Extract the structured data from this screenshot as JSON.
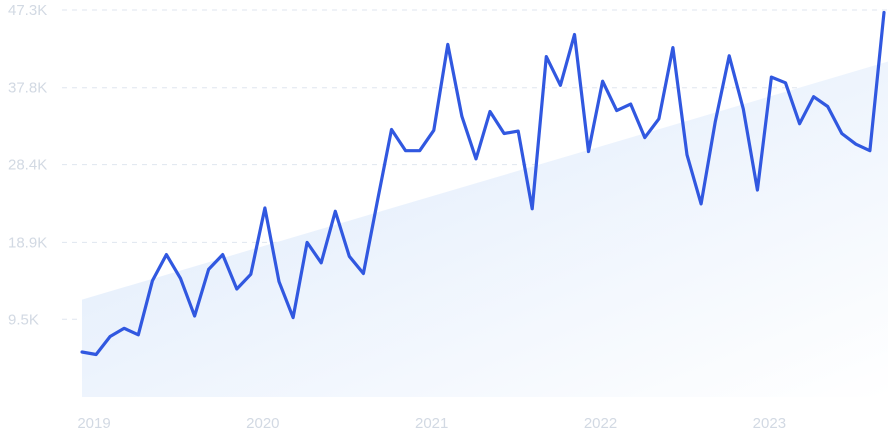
{
  "chart_data": {
    "type": "line",
    "title": "",
    "xlabel": "",
    "ylabel": "",
    "x_tick_labels": [
      "2019",
      "2020",
      "2021",
      "2022",
      "2023"
    ],
    "y_tick_labels": [
      "9.5K",
      "18.9K",
      "28.4K",
      "37.8K",
      "47.3K"
    ],
    "y_tick_values": [
      9500,
      18900,
      28400,
      37800,
      47300
    ],
    "ylim": [
      0,
      47300
    ],
    "xlim": [
      "2019-01",
      "2023-10"
    ],
    "grid": "horizontal dashed",
    "colors": {
      "line": "#3158e0",
      "trend_fill_start": "#dce9fb",
      "trend_fill_end": "#ffffff",
      "grid": "#dfe6ef",
      "tick_text": "#d2d9e3"
    },
    "trend": {
      "start": 11900,
      "end": 41000
    },
    "series": [
      {
        "x": [
          "2019-01",
          "2019-02",
          "2019-03",
          "2019-04",
          "2019-05",
          "2019-06",
          "2019-07",
          "2019-08",
          "2019-09",
          "2019-10",
          "2019-11",
          "2019-12",
          "2020-01",
          "2020-02",
          "2020-03",
          "2020-04",
          "2020-05",
          "2020-06",
          "2020-07",
          "2020-08",
          "2020-09",
          "2020-10",
          "2020-11",
          "2020-12",
          "2021-01",
          "2021-02",
          "2021-03",
          "2021-04",
          "2021-05",
          "2021-06",
          "2021-07",
          "2021-08",
          "2021-09",
          "2021-10",
          "2021-11",
          "2021-12",
          "2022-01",
          "2022-02",
          "2022-03",
          "2022-04",
          "2022-05",
          "2022-06",
          "2022-07",
          "2022-08",
          "2022-09",
          "2022-10",
          "2022-11",
          "2022-12",
          "2023-01",
          "2023-02",
          "2023-03",
          "2023-04",
          "2023-05",
          "2023-06",
          "2023-07",
          "2023-08",
          "2023-09",
          "2023-10"
        ],
        "values": [
          5500,
          5200,
          7400,
          8400,
          7600,
          14200,
          17400,
          14500,
          9900,
          15600,
          17400,
          13200,
          15000,
          23100,
          14100,
          9700,
          18900,
          16400,
          22700,
          17200,
          15100,
          24000,
          32700,
          30100,
          30100,
          32600,
          43100,
          34300,
          29100,
          34900,
          32200,
          32500,
          23000,
          41600,
          38100,
          44300,
          30000,
          38600,
          35000,
          35800,
          31700,
          34000,
          42700,
          29600,
          23600,
          33600,
          41700,
          35200,
          25300,
          39100,
          38400,
          33400,
          36700,
          35500,
          32200,
          30900,
          30100,
          47000
        ]
      }
    ]
  }
}
